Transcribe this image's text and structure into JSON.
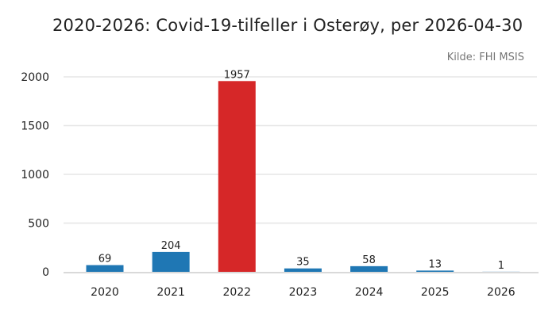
{
  "chart_data": {
    "type": "bar",
    "title": "2020-2026: Covid-19-tilfeller i Osterøy, per 2026-04-30",
    "source": "Kilde: FHI MSIS",
    "categories": [
      "2020",
      "2021",
      "2022",
      "2023",
      "2024",
      "2025",
      "2026"
    ],
    "values": [
      69,
      204,
      1957,
      35,
      58,
      13,
      1
    ],
    "value_labels": [
      "69",
      "204",
      "1957",
      "35",
      "58",
      "13",
      "1"
    ],
    "highlight_index": 2,
    "ylim": [
      0,
      2000
    ],
    "yticks": [
      0,
      500,
      1000,
      1500,
      2000
    ],
    "ytick_labels": [
      "0",
      "500",
      "1000",
      "1500",
      "2000"
    ],
    "grid": true,
    "colors": {
      "bar": "#1f77b4",
      "highlight": "#d62728",
      "grid": "#e6e6e6",
      "axis": "#d9d9d9"
    }
  }
}
